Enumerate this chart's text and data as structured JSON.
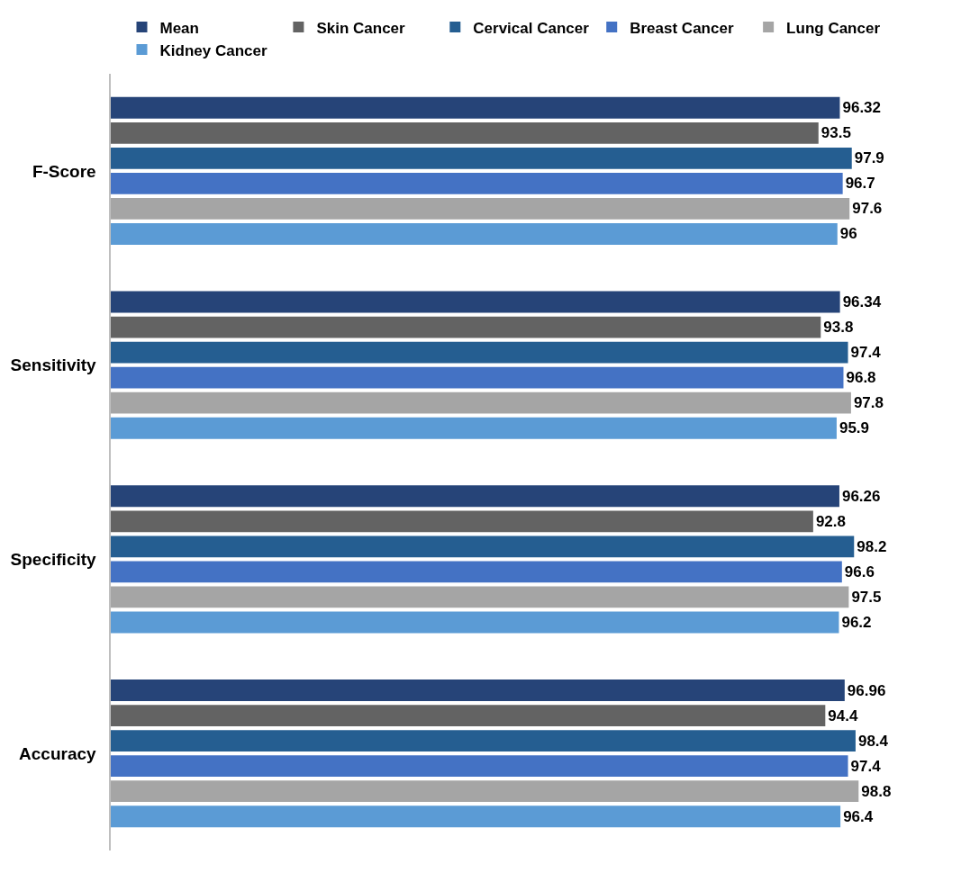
{
  "chart_data": {
    "type": "bar",
    "orientation": "horizontal",
    "categories": [
      "F-Score",
      "Sensitivity",
      "Specificity",
      "Accuracy"
    ],
    "series": [
      {
        "name": "Mean",
        "color": "#264478",
        "values": [
          96.32,
          96.34,
          96.26,
          96.96
        ]
      },
      {
        "name": "Skin Cancer",
        "color": "#636363",
        "values": [
          93.5,
          93.8,
          92.8,
          94.4
        ]
      },
      {
        "name": "Cervical Cancer",
        "color": "#255e91",
        "values": [
          97.9,
          97.4,
          98.2,
          98.4
        ]
      },
      {
        "name": "Breast Cancer",
        "color": "#4472c4",
        "values": [
          96.7,
          96.8,
          96.6,
          97.4
        ]
      },
      {
        "name": "Lung Cancer",
        "color": "#a5a5a5",
        "values": [
          97.6,
          97.8,
          97.5,
          98.8
        ]
      },
      {
        "name": "Kidney Cancer",
        "color": "#5b9bd5",
        "values": [
          96,
          95.9,
          96.2,
          96.4
        ]
      }
    ],
    "tick_labels": "y",
    "data_labels": true,
    "legend": "top"
  }
}
